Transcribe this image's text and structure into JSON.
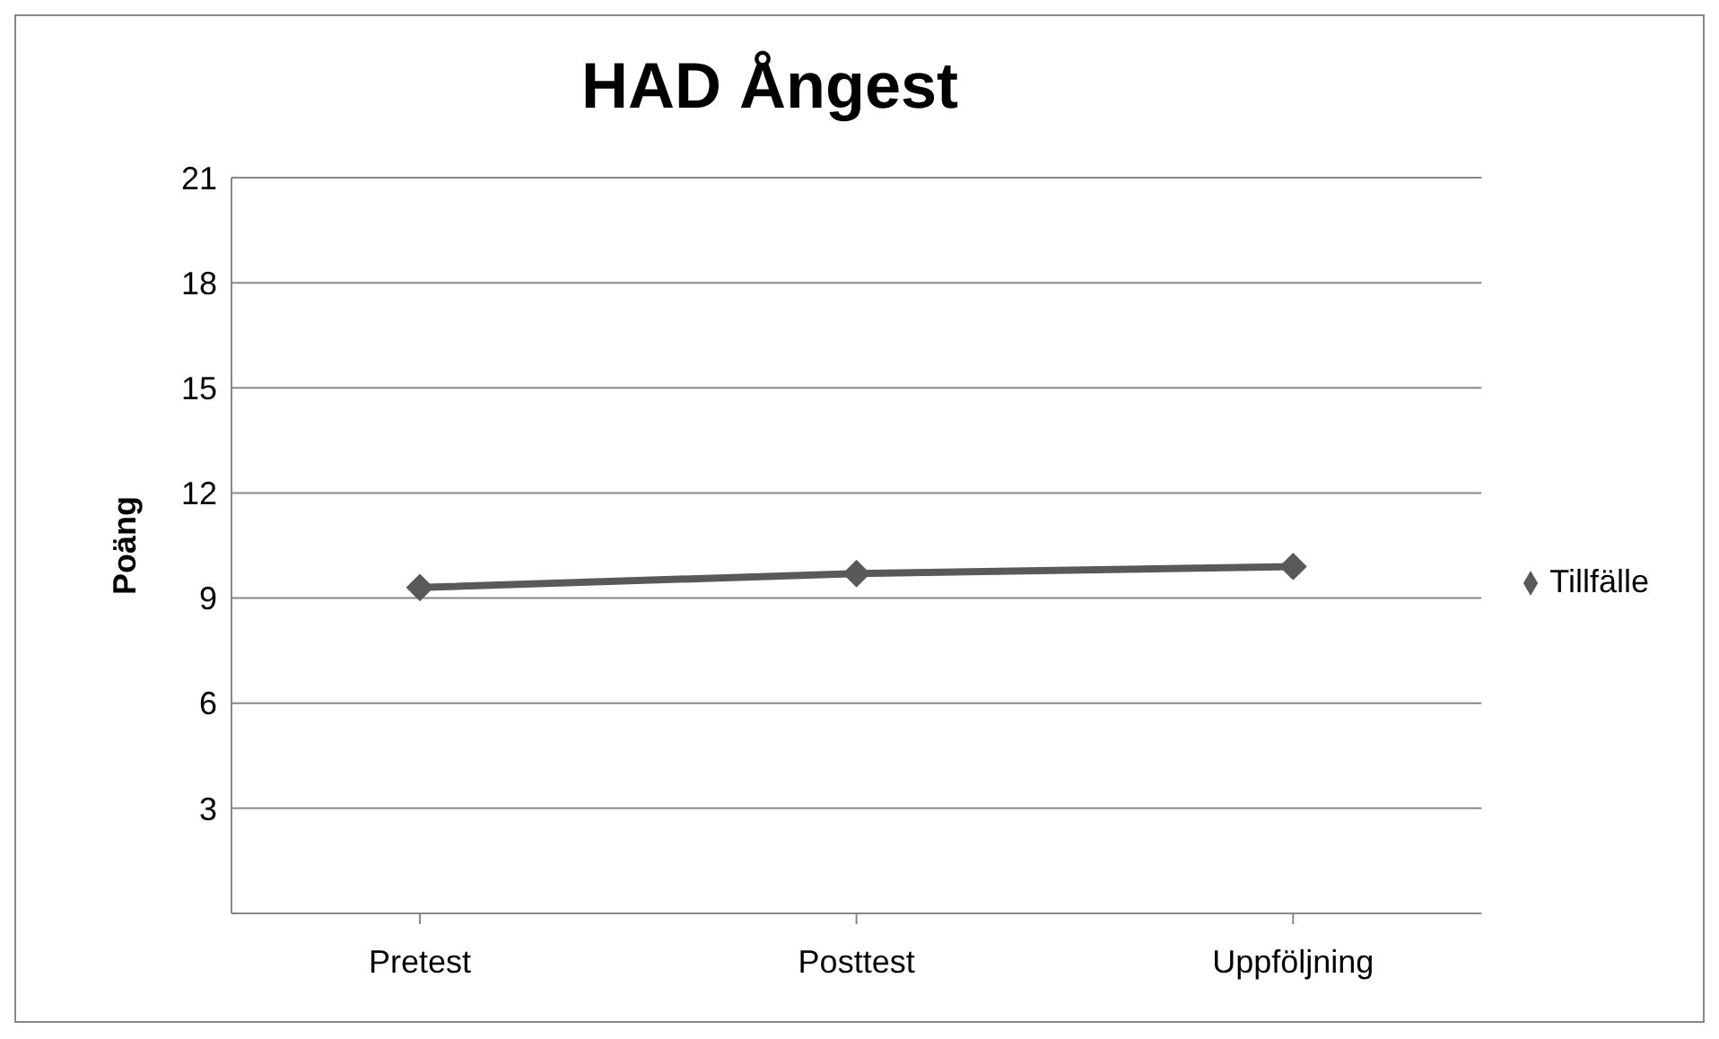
{
  "chart_data": {
    "type": "line",
    "title": "HAD Ångest",
    "ylabel": "Poäng",
    "categories": [
      "Pretest",
      "Posttest",
      "Uppföljning"
    ],
    "series": [
      {
        "name": "Tillfälle",
        "color": "#595959",
        "values": [
          9.3,
          9.7,
          9.9
        ]
      }
    ],
    "ylim": [
      0,
      21
    ],
    "yticks": [
      {
        "value": 0,
        "label": null
      },
      3,
      6,
      9,
      12,
      15,
      18,
      21
    ],
    "grid": "y",
    "legend": "right",
    "marker": "diamond",
    "line_style": "solid"
  }
}
